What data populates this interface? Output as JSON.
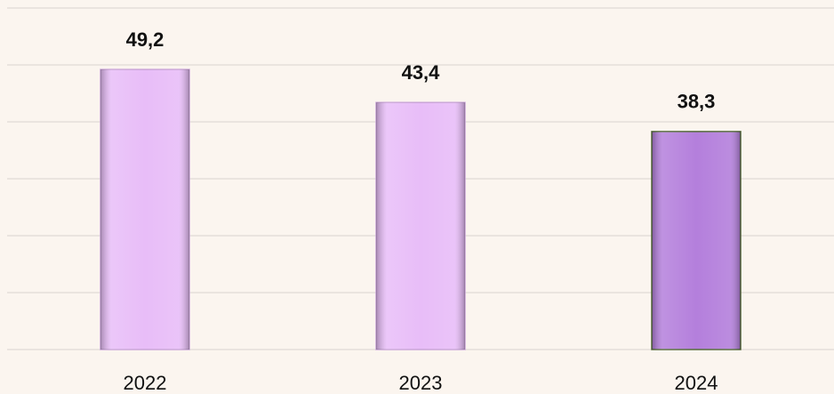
{
  "chart_data": {
    "type": "bar",
    "categories": [
      "2022",
      "2023",
      "2024"
    ],
    "values": [
      49.2,
      43.4,
      38.3
    ],
    "value_labels": [
      "49,2",
      "43,4",
      "38,3"
    ],
    "colors": [
      "#e8bdf8",
      "#e8bdf8",
      "#b47fdc"
    ],
    "ylim": [
      0,
      60
    ],
    "yticks": [
      0,
      10,
      20,
      30,
      40,
      50,
      60
    ],
    "grid": true
  }
}
